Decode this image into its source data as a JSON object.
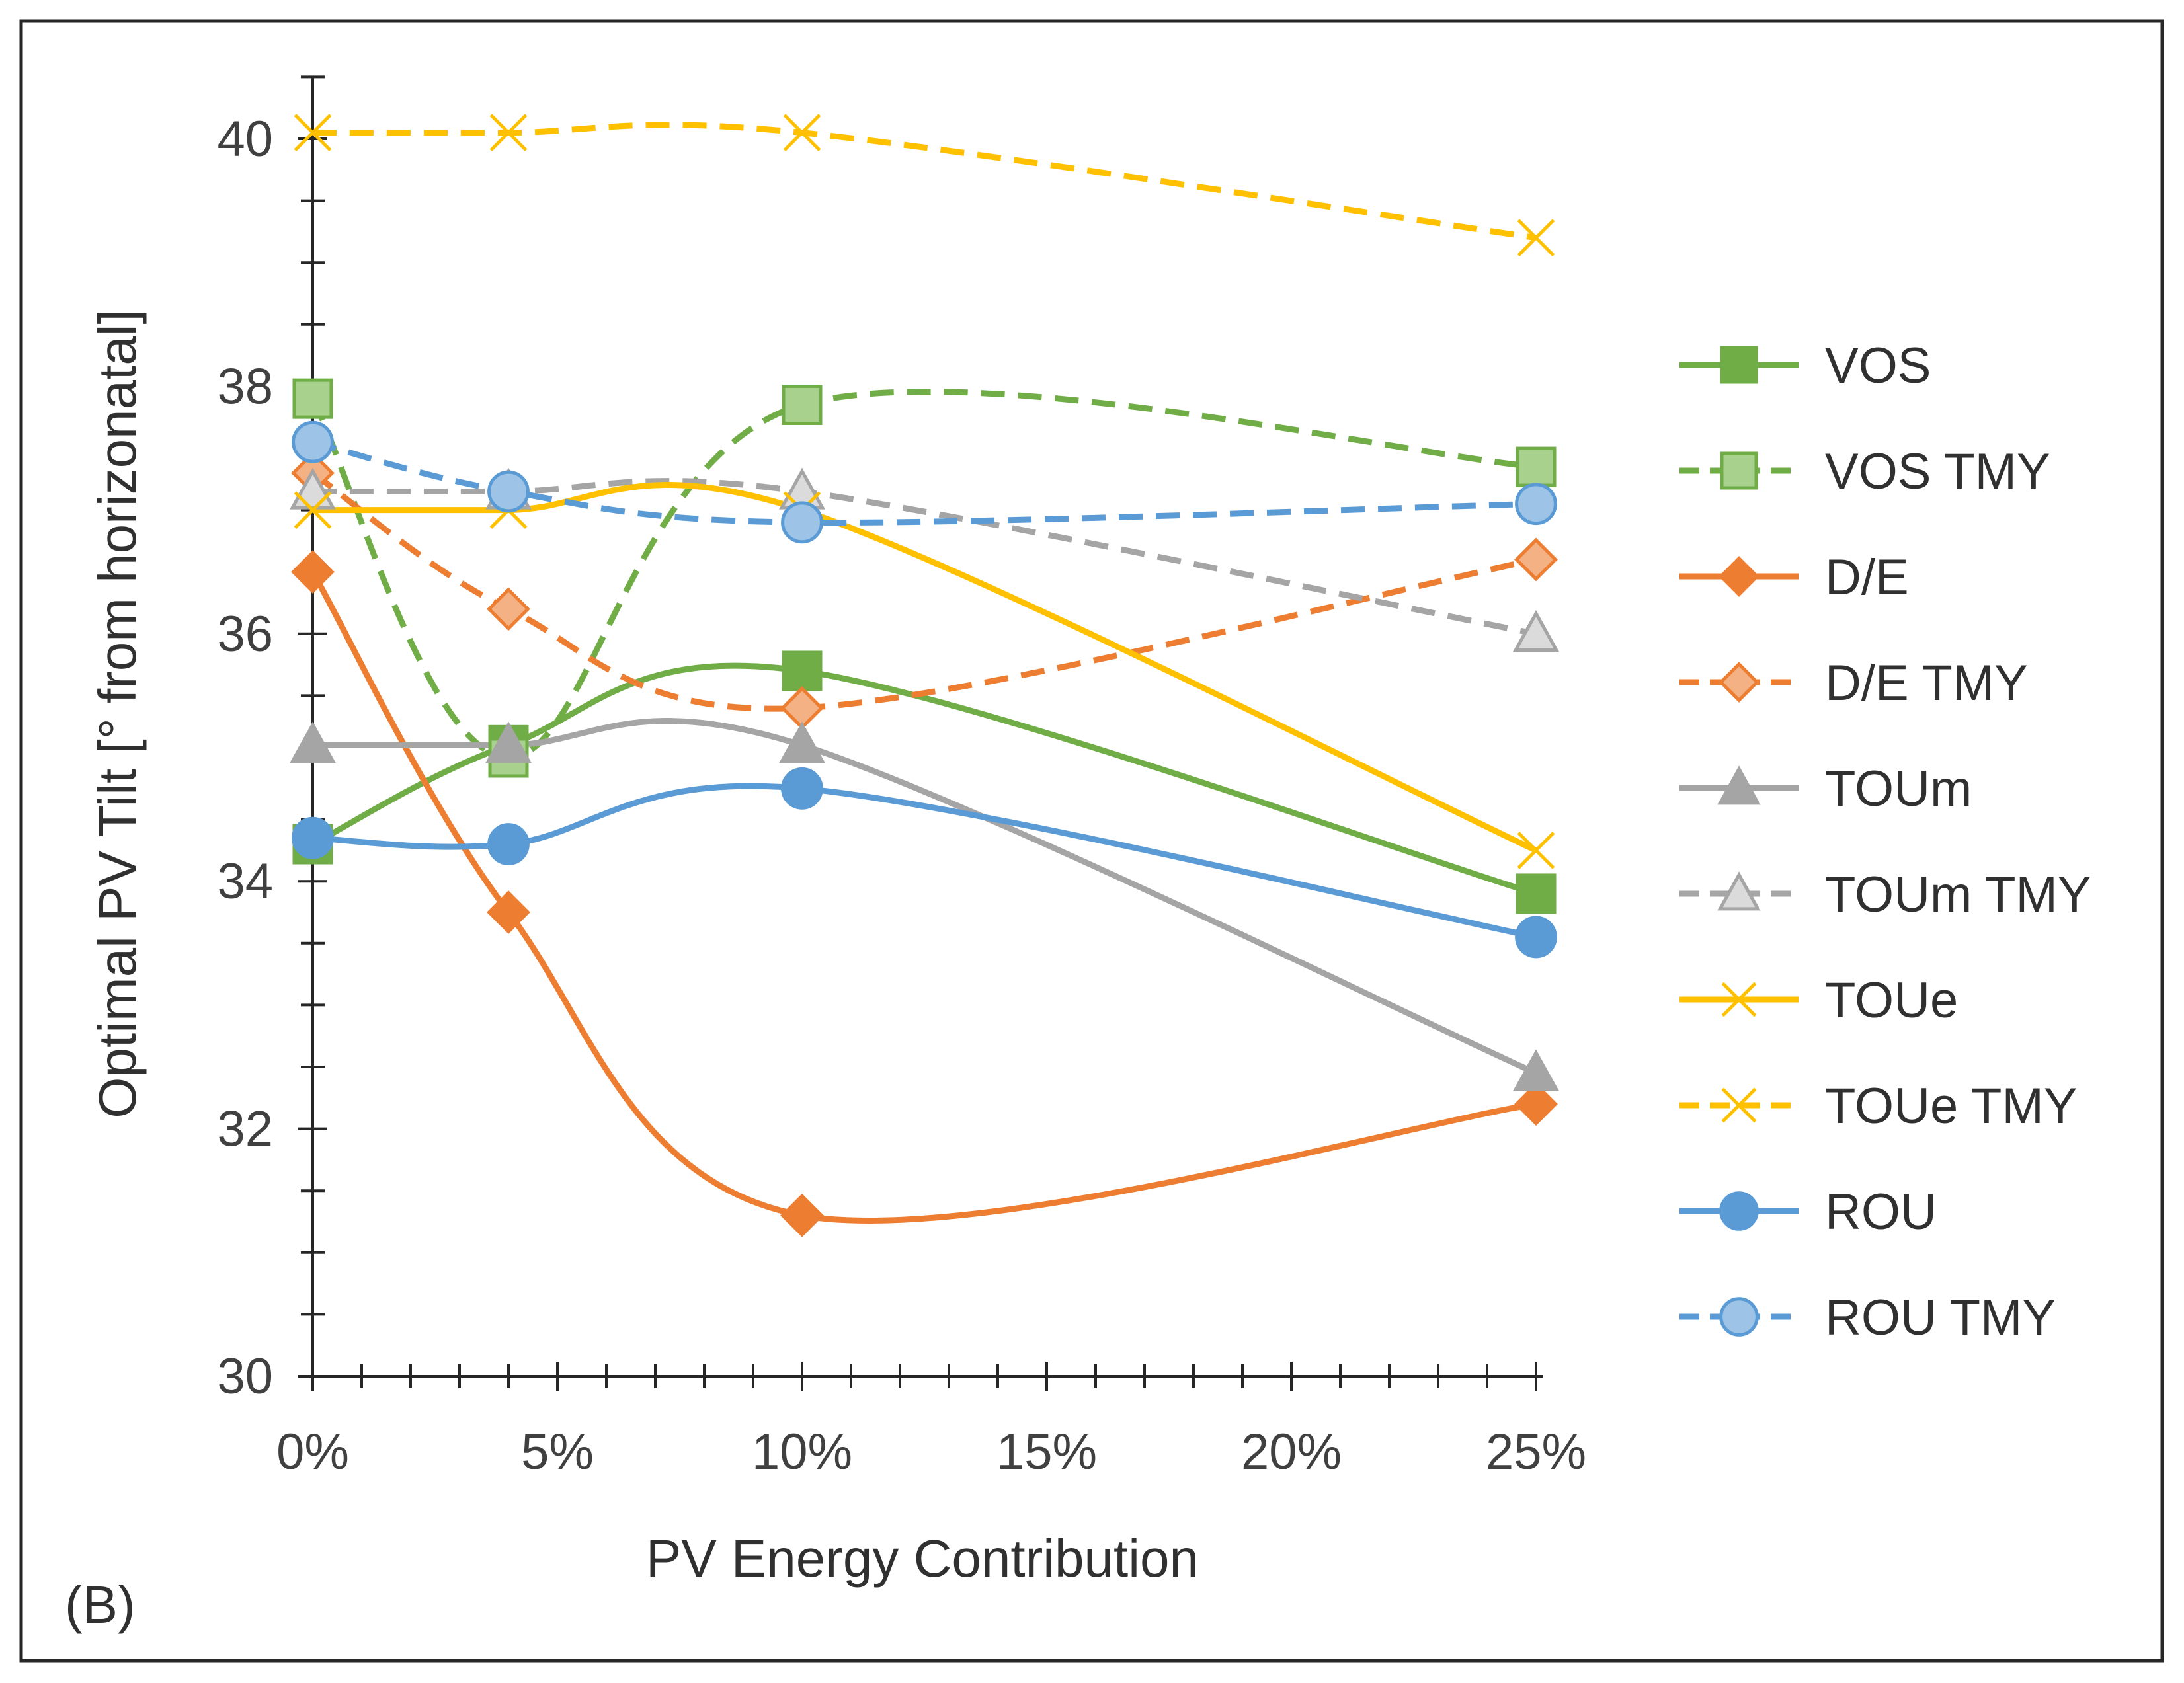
{
  "chart_data": {
    "type": "line",
    "title": "",
    "panel_label": "(B)",
    "xlabel": "PV Energy Contribution",
    "ylabel": "Optimal PV Tilt [° from horizonatal]",
    "xlim": [
      0,
      25
    ],
    "ylim": [
      30,
      40.5
    ],
    "x_ticks": [
      0,
      5,
      10,
      15,
      20,
      25
    ],
    "x_tick_labels": [
      "0%",
      "5%",
      "10%",
      "15%",
      "20%",
      "25%"
    ],
    "y_ticks": [
      30,
      32,
      34,
      36,
      38,
      40
    ],
    "y_tick_labels": [
      "30",
      "32",
      "34",
      "36",
      "38",
      "40"
    ],
    "x": [
      0,
      4,
      10,
      25
    ],
    "legend_position": "right",
    "series": [
      {
        "name": "VOS",
        "values": [
          34.3,
          35.1,
          35.7,
          33.9
        ],
        "color": "#70ad47",
        "dashed": false,
        "marker": "square",
        "fill": "#70ad47",
        "stroke": "#70ad47"
      },
      {
        "name": "VOS TMY",
        "values": [
          37.9,
          35.0,
          37.85,
          37.35
        ],
        "color": "#70ad47",
        "dashed": true,
        "marker": "square",
        "fill": "#a9d18e",
        "stroke": "#70ad47"
      },
      {
        "name": "D/E",
        "values": [
          36.5,
          33.75,
          31.3,
          32.2
        ],
        "color": "#ed7d31",
        "dashed": false,
        "marker": "diamond",
        "fill": "#ed7d31",
        "stroke": "#ed7d31"
      },
      {
        "name": "D/E TMY",
        "values": [
          37.3,
          36.2,
          35.4,
          36.6
        ],
        "color": "#ed7d31",
        "dashed": true,
        "marker": "diamond",
        "fill": "#f4b183",
        "stroke": "#ed7d31"
      },
      {
        "name": "TOUm",
        "values": [
          35.1,
          35.1,
          35.1,
          32.45
        ],
        "color": "#a5a5a5",
        "dashed": false,
        "marker": "triangle",
        "fill": "#a5a5a5",
        "stroke": "#a5a5a5"
      },
      {
        "name": "TOUm TMY",
        "values": [
          37.15,
          37.15,
          37.15,
          36.0
        ],
        "color": "#a5a5a5",
        "dashed": true,
        "marker": "triangle",
        "fill": "#dbdbdb",
        "stroke": "#a5a5a5"
      },
      {
        "name": "TOUe",
        "values": [
          37.0,
          37.0,
          37.0,
          34.25
        ],
        "color": "#ffc000",
        "dashed": false,
        "marker": "x",
        "fill": "none",
        "stroke": "#ffc000"
      },
      {
        "name": "TOUe TMY",
        "values": [
          40.05,
          40.05,
          40.05,
          39.2
        ],
        "color": "#ffc000",
        "dashed": true,
        "marker": "x",
        "fill": "none",
        "stroke": "#ffc000"
      },
      {
        "name": "ROU",
        "values": [
          34.35,
          34.3,
          34.75,
          33.55
        ],
        "color": "#5b9bd5",
        "dashed": false,
        "marker": "circle",
        "fill": "#5b9bd5",
        "stroke": "#5b9bd5"
      },
      {
        "name": "ROU TMY",
        "values": [
          37.55,
          37.15,
          36.9,
          37.05
        ],
        "color": "#5b9bd5",
        "dashed": true,
        "marker": "circle",
        "fill": "#9dc3e6",
        "stroke": "#5b9bd5"
      }
    ]
  }
}
